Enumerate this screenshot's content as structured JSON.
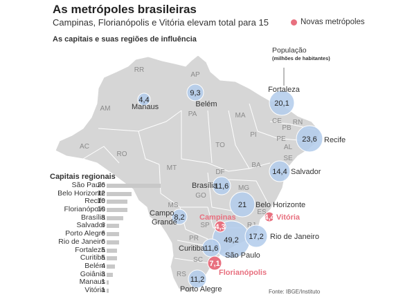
{
  "title": "As metrópoles brasileiras",
  "subtitle": "Campinas, Florianópolis e Vitória elevam total para 15",
  "legend_new": "Novas metrópoles",
  "section_title": "As capitais e suas regiões de influência",
  "population_legend": {
    "label": "População",
    "unit": "(milhões de habitantes)"
  },
  "colors": {
    "circle": "#b4cdec",
    "new_metro": "#e8707f",
    "state_border": "#ffffff",
    "land": "#d6d6d6",
    "bar": "#c8c8c8"
  },
  "states": [
    "RR",
    "AP",
    "AM",
    "PA",
    "MA",
    "CE",
    "RN",
    "PB",
    "PI",
    "PE",
    "AL",
    "SE",
    "AC",
    "RO",
    "TO",
    "BA",
    "MT",
    "DF",
    "GO",
    "MG",
    "ES",
    "MS",
    "SP",
    "RJ",
    "PR",
    "SC",
    "RS"
  ],
  "metros": [
    {
      "city": "Manaus",
      "value": "4,4",
      "new": false
    },
    {
      "city": "Belém",
      "value": "9,3",
      "new": false
    },
    {
      "city": "Fortaleza",
      "value": "20,1",
      "new": false
    },
    {
      "city": "Recife",
      "value": "23,6",
      "new": false
    },
    {
      "city": "Salvador",
      "value": "14,4",
      "new": false
    },
    {
      "city": "Brasília",
      "value": "11,6",
      "new": false
    },
    {
      "city": "Belo Horizonte",
      "value": "21",
      "new": false
    },
    {
      "city": "Campo Grande",
      "value": "8,2",
      "new": false
    },
    {
      "city": "Campinas",
      "value": "4,3",
      "new": true
    },
    {
      "city": "Vitória",
      "value": "4,4",
      "new": true
    },
    {
      "city": "São Paulo",
      "value": "49,2",
      "new": false
    },
    {
      "city": "Rio de Janeiro",
      "value": "17,2",
      "new": false
    },
    {
      "city": "Curitiba",
      "value": "11,6",
      "new": false
    },
    {
      "city": "Florianópolis",
      "value": "7,1",
      "new": true
    },
    {
      "city": "Porto Alegre",
      "value": "11,2",
      "new": false
    }
  ],
  "regional_title": "Capitais regionais",
  "regional": [
    {
      "name": "São Paulo",
      "value": 26
    },
    {
      "name": "Belo Horizonte",
      "value": 12
    },
    {
      "name": "Recife",
      "value": 10
    },
    {
      "name": "Florianópolis",
      "value": 10
    },
    {
      "name": "Brasília",
      "value": 8
    },
    {
      "name": "Salvador",
      "value": 6
    },
    {
      "name": "Porto Alegre",
      "value": 6
    },
    {
      "name": "Rio de Janeiro",
      "value": 6
    },
    {
      "name": "Fortaleza",
      "value": 5
    },
    {
      "name": "Curitiba",
      "value": 5
    },
    {
      "name": "Belém",
      "value": 4
    },
    {
      "name": "Goiânia",
      "value": 3
    },
    {
      "name": "Manaus",
      "value": 1
    },
    {
      "name": "Vitória",
      "value": 1
    }
  ],
  "source": "Fonte: IBGE/Instituto"
}
